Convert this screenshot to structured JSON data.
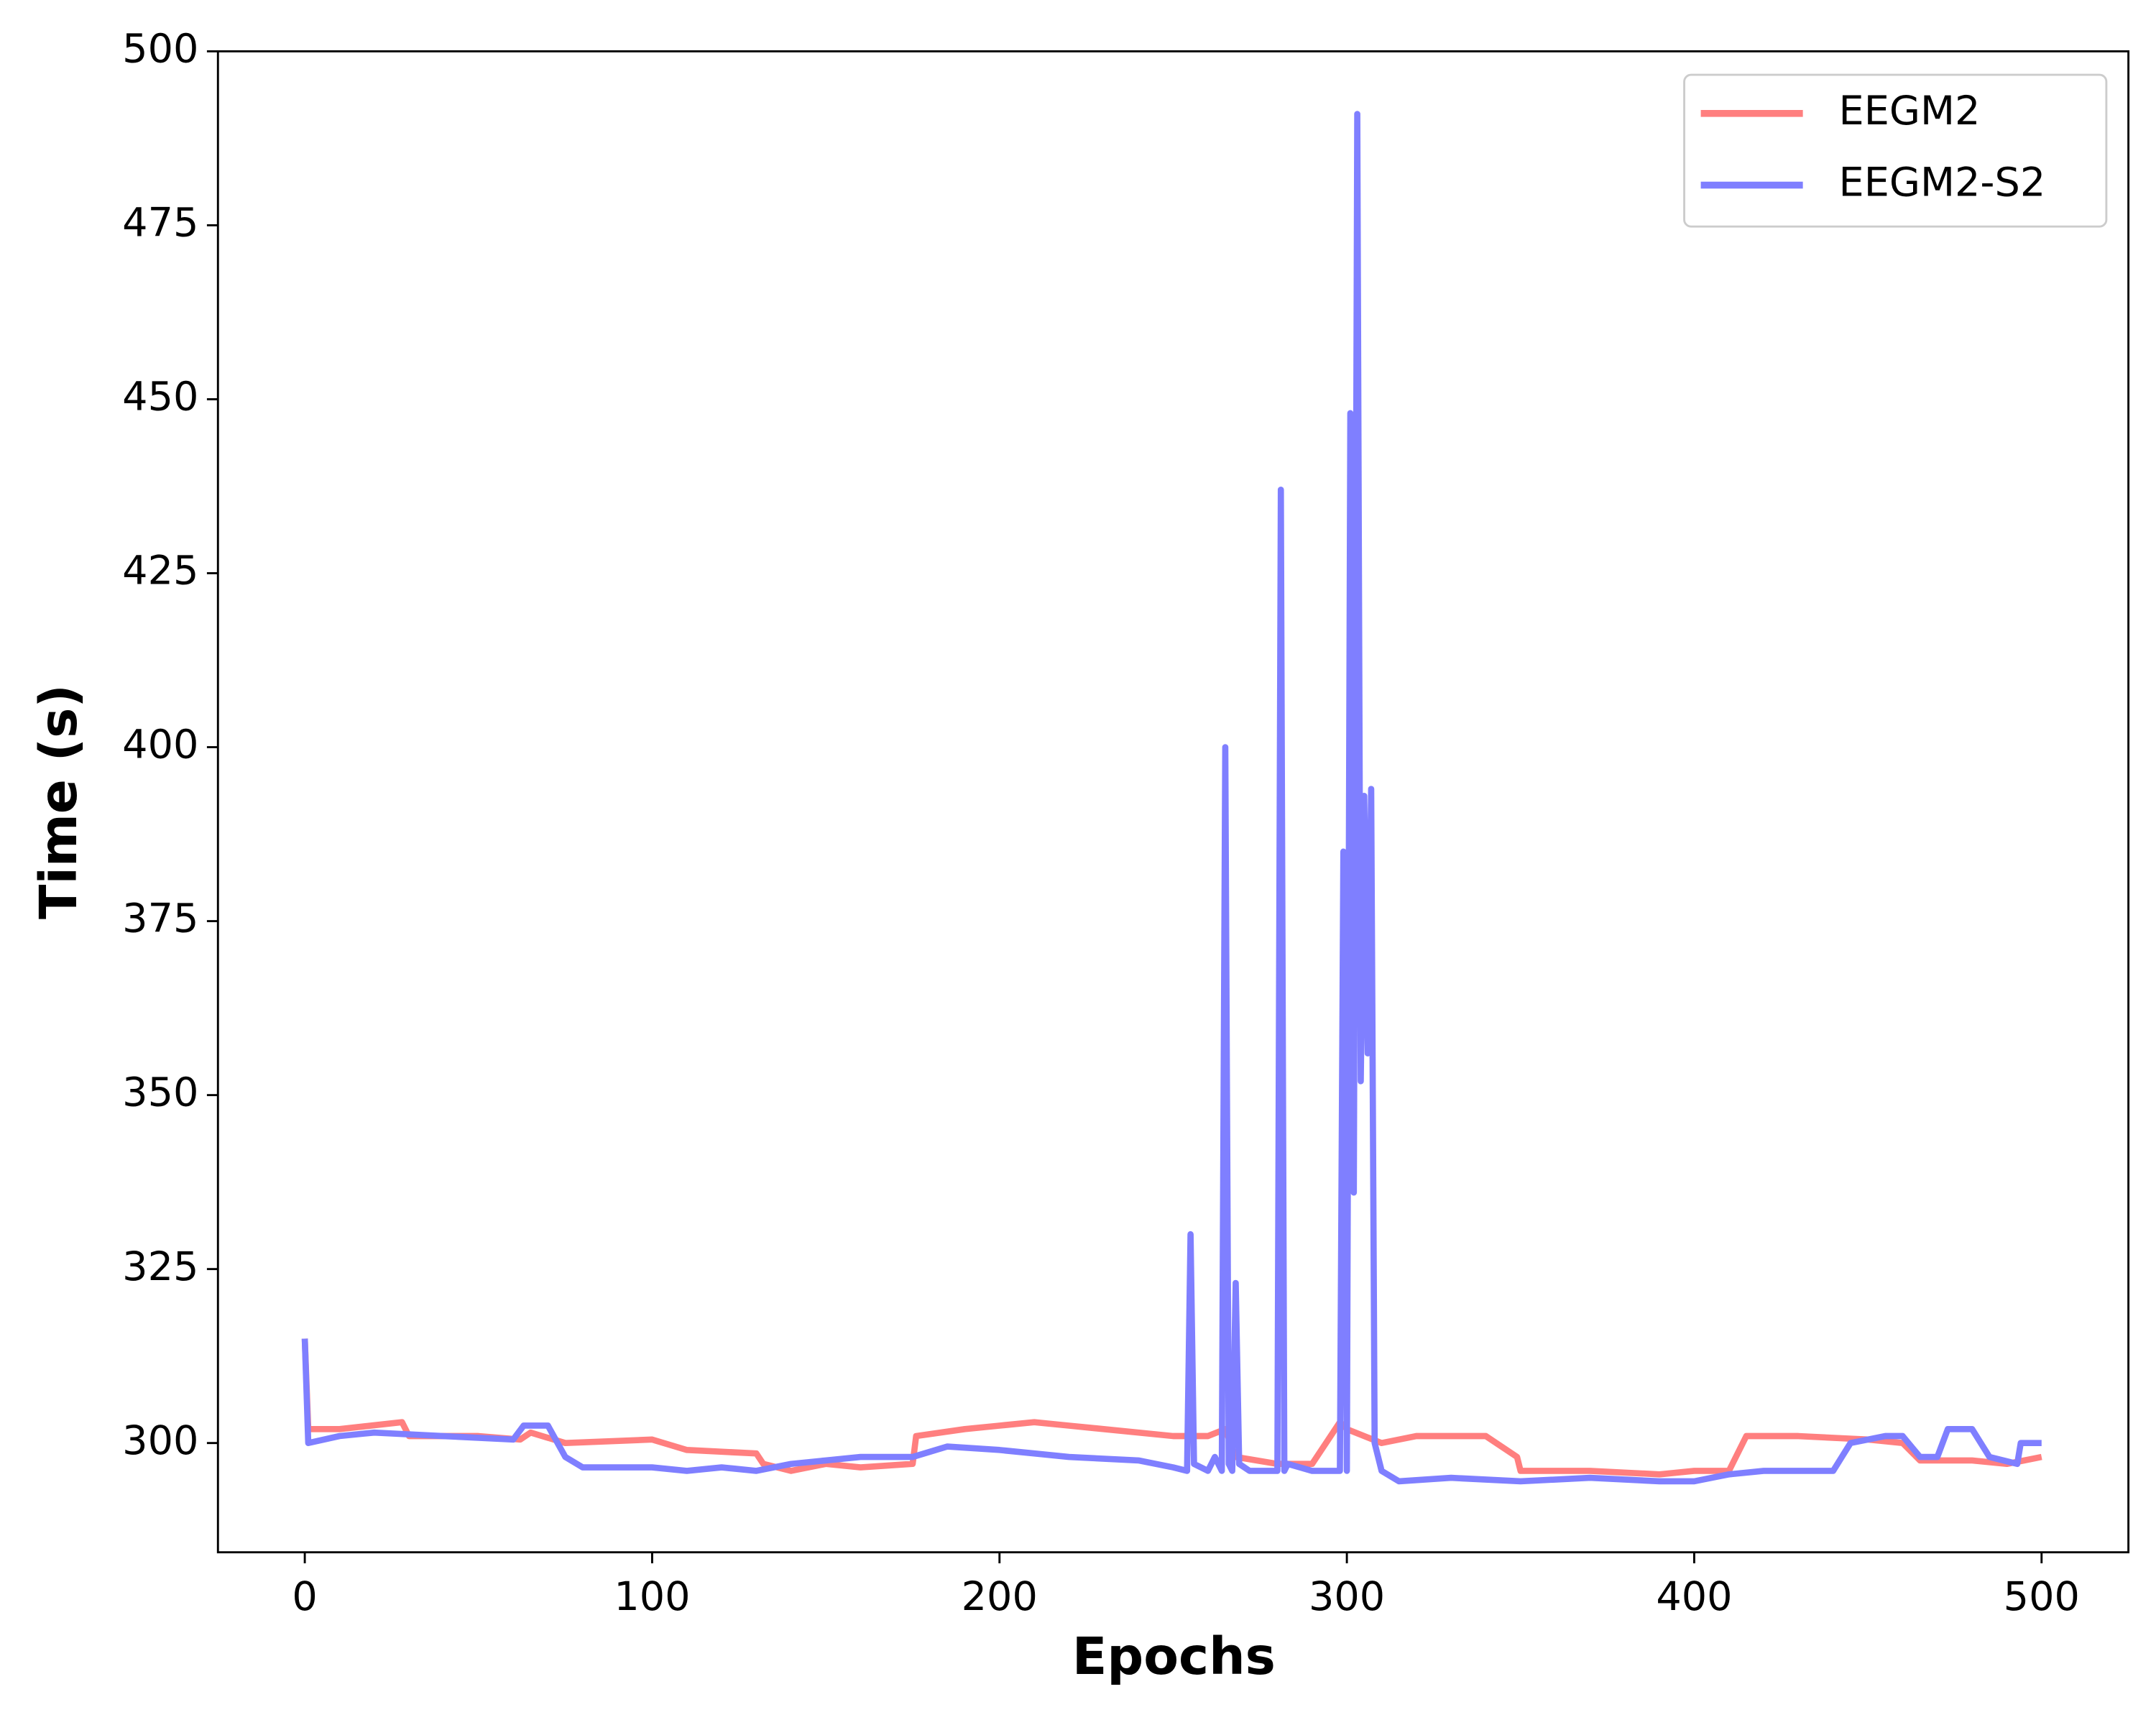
{
  "chart_data": {
    "type": "line",
    "xlabel": "Epochs",
    "ylabel": "Time (s)",
    "xlim": [
      -25,
      525
    ],
    "xticks": [
      0,
      100,
      200,
      300,
      400,
      500
    ],
    "ylim": [
      284.3,
      500
    ],
    "yticks": [
      300,
      325,
      350,
      375,
      400,
      425,
      450,
      475,
      500
    ],
    "legend": "upper right",
    "series": [
      {
        "name": "EEGM2",
        "color": "#ff7f7f",
        "x": [
          0,
          1,
          10,
          28,
          30,
          50,
          62,
          65,
          75,
          100,
          110,
          130,
          132,
          140,
          150,
          160,
          175,
          176,
          190,
          200,
          210,
          220,
          230,
          250,
          260,
          265,
          268,
          280,
          290,
          298,
          300,
          310,
          320,
          340,
          349,
          350,
          360,
          370,
          390,
          400,
          410,
          415,
          430,
          450,
          460,
          465,
          480,
          490,
          500
        ],
        "values": [
          315,
          302,
          302,
          303,
          301,
          301,
          300.5,
          301.5,
          300,
          300.5,
          299,
          298.5,
          297,
          296,
          297,
          296.5,
          297,
          301,
          302,
          302.5,
          303,
          302.5,
          302,
          301,
          301,
          302,
          298,
          297,
          297,
          303,
          302,
          300,
          301,
          301,
          298,
          296,
          296,
          296,
          295.5,
          296,
          296,
          301,
          301,
          300.5,
          300,
          297.5,
          297.5,
          297,
          298
        ]
      },
      {
        "name": "EEGM2-S2",
        "color": "#7f7fff",
        "x": [
          0,
          1,
          10,
          20,
          40,
          60,
          63,
          70,
          75,
          80,
          100,
          110,
          120,
          130,
          140,
          150,
          160,
          175,
          185,
          200,
          210,
          220,
          240,
          250,
          254,
          255,
          256,
          260,
          262,
          264,
          265,
          266,
          267,
          268,
          269,
          272,
          280,
          281,
          282,
          283,
          290,
          295,
          298,
          299,
          300,
          301,
          302,
          303,
          304,
          305,
          306,
          307,
          308,
          310,
          315,
          330,
          350,
          370,
          390,
          400,
          410,
          420,
          440,
          445,
          455,
          460,
          465,
          470,
          473,
          480,
          485,
          493,
          494,
          500
        ],
        "values": [
          315,
          300,
          301,
          301.5,
          301,
          300.5,
          302.5,
          302.5,
          298,
          296.5,
          296.5,
          296,
          296.5,
          296,
          297,
          297.5,
          298,
          298,
          299.5,
          299,
          298.5,
          298,
          297.5,
          296.5,
          296,
          330,
          297,
          296,
          298,
          296,
          400,
          297,
          296,
          323,
          297,
          296,
          296,
          437,
          296,
          297,
          296,
          296,
          296,
          385,
          296,
          448,
          336,
          491,
          352,
          393,
          356,
          394,
          300,
          296,
          294.5,
          295,
          294.5,
          295,
          294.5,
          294.5,
          295.5,
          296,
          296,
          300,
          301,
          301,
          298,
          298,
          302,
          302,
          298,
          297,
          300,
          300
        ]
      }
    ]
  }
}
